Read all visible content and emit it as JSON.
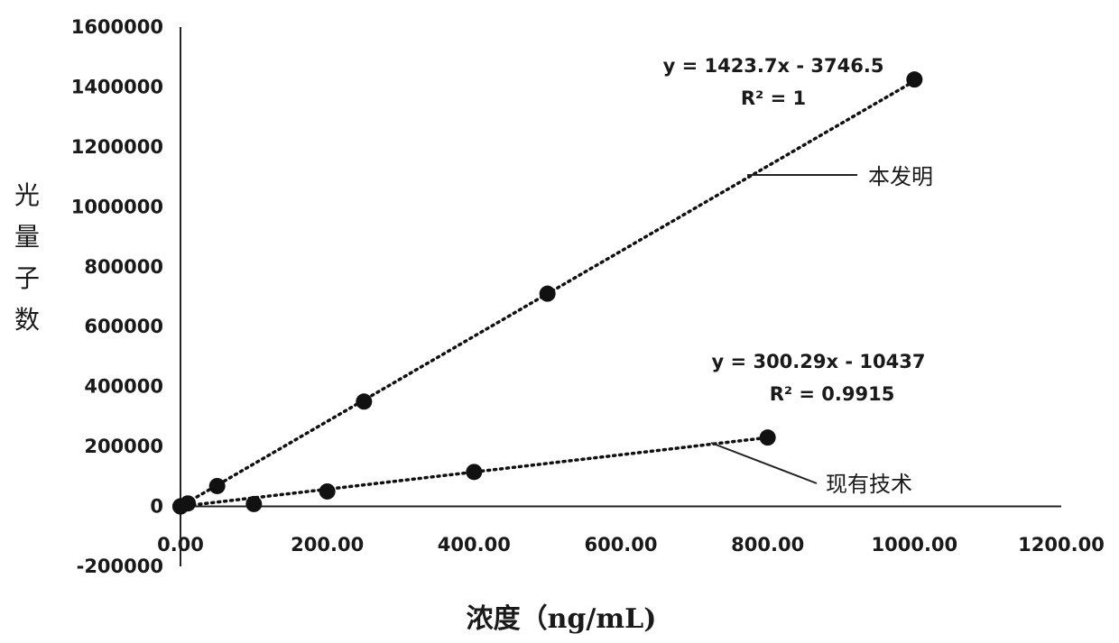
{
  "chart_data": {
    "type": "scatter",
    "xlabel": "浓度（ng/mL)",
    "ylabel": "光量子数",
    "xlim": [
      0,
      1200
    ],
    "ylim": [
      -200000,
      1600000
    ],
    "x_ticks": [
      "0.00",
      "200.00",
      "400.00",
      "600.00",
      "800.00",
      "1000.00",
      "1200.00"
    ],
    "y_ticks": [
      "-200000",
      "0",
      "200000",
      "400000",
      "600000",
      "800000",
      "1000000",
      "1200000",
      "1400000",
      "1600000"
    ],
    "grid": false,
    "series": [
      {
        "name": "本发明",
        "points": [
          [
            0,
            0
          ],
          [
            10,
            10000
          ],
          [
            50,
            68000
          ],
          [
            250,
            350000
          ],
          [
            500,
            710000
          ],
          [
            1000,
            1425000
          ]
        ],
        "trendline": {
          "slope": 1423.7,
          "intercept": -3746.5,
          "x_range": [
            0,
            1000
          ]
        },
        "equation": "y = 1423.7x - 3746.5",
        "r2": "R² = 1"
      },
      {
        "name": "现有技术",
        "points": [
          [
            0,
            0
          ],
          [
            100,
            8000
          ],
          [
            200,
            50000
          ],
          [
            400,
            115000
          ],
          [
            800,
            230000
          ]
        ],
        "trendline": {
          "slope": 300.29,
          "intercept": -10437,
          "x_range": [
            0,
            800
          ]
        },
        "equation": "y = 300.29x - 10437",
        "r2": "R² = 0.9915"
      }
    ]
  }
}
